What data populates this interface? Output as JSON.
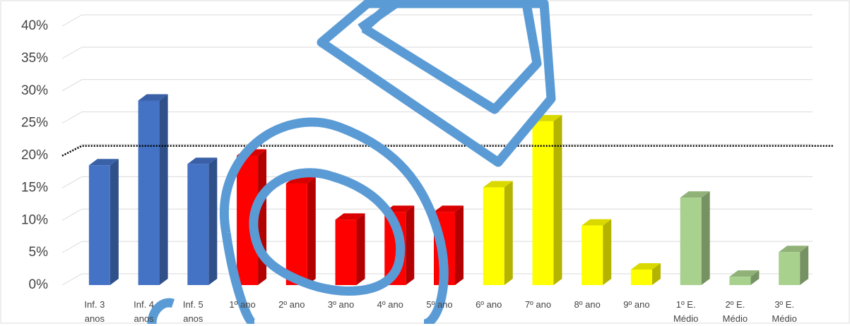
{
  "chart_data": {
    "type": "bar3d",
    "categories": [
      "Inf. 3 anos",
      "Inf. 4 anos",
      "Inf. 5 anos",
      "1º ano",
      "2º ano",
      "3º ano",
      "4º ano",
      "5º ano",
      "6º ano",
      "7º ano",
      "8º ano",
      "9º ano",
      "1º E. Médio",
      "2º E. Médio",
      "3º E. Médio"
    ],
    "values": [
      18.5,
      28.5,
      18.7,
      20,
      15.7,
      10.1,
      11.3,
      11.3,
      15.1,
      25.3,
      9.2,
      2.4,
      13.5,
      1.3,
      5.1
    ],
    "colors": [
      "#4472c4",
      "#4472c4",
      "#4472c4",
      "#ff0000",
      "#ff0000",
      "#ff0000",
      "#ff0000",
      "#ff0000",
      "#ffff00",
      "#ffff00",
      "#ffff00",
      "#ffff00",
      "#a9d18e",
      "#a9d18e",
      "#a9d18e"
    ],
    "reference_line": 21.5,
    "ylim": [
      0,
      40
    ],
    "yticks": [
      {
        "value": 0,
        "label": "0%"
      },
      {
        "value": 5,
        "label": "5%"
      },
      {
        "value": 10,
        "label": "10%"
      },
      {
        "value": 15,
        "label": "15%"
      },
      {
        "value": 20,
        "label": "20%"
      },
      {
        "value": 25,
        "label": "25%"
      },
      {
        "value": 30,
        "label": "30%"
      },
      {
        "value": 35,
        "label": "35%"
      },
      {
        "value": 40,
        "label": "40%"
      }
    ],
    "grid": true
  }
}
